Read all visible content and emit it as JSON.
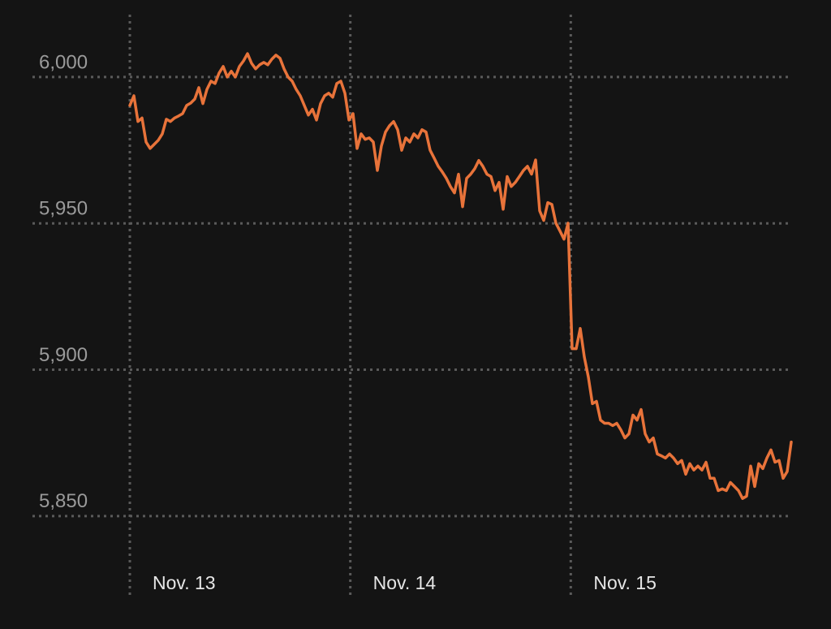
{
  "chart_data": {
    "type": "line",
    "x_labels": [
      "Nov. 13",
      "Nov. 14",
      "Nov. 15"
    ],
    "color": "#e8733a",
    "ylim": [
      5825,
      6020
    ],
    "yticks": [
      {
        "value": 5850,
        "label": "5,850"
      },
      {
        "value": 5900,
        "label": "5,900"
      },
      {
        "value": 5950,
        "label": "5,950"
      },
      {
        "value": 6000,
        "label": "6,000"
      }
    ],
    "grid": true,
    "values": [
      5990.3,
      5993.6,
      5984.8,
      5986,
      5977.8,
      5975.6,
      5977,
      5978.4,
      5980.6,
      5985.6,
      5984.8,
      5986,
      5986.7,
      5987.5,
      5990.3,
      5991.1,
      5992.5,
      5996.4,
      5990.9,
      5995.8,
      5998.6,
      5997.8,
      6001.4,
      6003.6,
      6000,
      6002,
      6000,
      6003.6,
      6005.5,
      6008,
      6004.7,
      6002.8,
      6004.2,
      6005,
      6004.2,
      6006.1,
      6007.5,
      6006.4,
      6002.8,
      6000,
      5998.6,
      5995.8,
      5993.6,
      5990.3,
      5987,
      5989,
      5985.3,
      5990.9,
      5993.6,
      5994.5,
      5993.1,
      5997.8,
      5998.6,
      5994.5,
      5985.3,
      5987.5,
      5975.6,
      5980.6,
      5978.7,
      5979.2,
      5977.8,
      5968.1,
      5976.5,
      5981.2,
      5983.4,
      5984.8,
      5982,
      5975,
      5979.2,
      5977.8,
      5980.6,
      5979.2,
      5982,
      5981.2,
      5975,
      5972.3,
      5969.5,
      5967.6,
      5965.4,
      5962.6,
      5960.4,
      5966.8,
      5955.7,
      5965.4,
      5966.8,
      5968.7,
      5971.5,
      5969.5,
      5966.8,
      5966,
      5961.2,
      5964,
      5954.8,
      5966,
      5962.6,
      5964,
      5966,
      5968.1,
      5969.5,
      5966.8,
      5971.7,
      5954.3,
      5951,
      5957.1,
      5956.5,
      5950.1,
      5947.4,
      5944.6,
      5950.1,
      5907.2,
      5907.2,
      5914.1,
      5904.4,
      5897.5,
      5888.4,
      5889.2,
      5882.8,
      5881.7,
      5881.7,
      5880.9,
      5881.7,
      5879.5,
      5876.7,
      5878.1,
      5884.5,
      5882.8,
      5886.4,
      5878.1,
      5875.3,
      5876.7,
      5871.2,
      5870.6,
      5869.8,
      5871.2,
      5869.8,
      5867.9,
      5869,
      5864.3,
      5867.9,
      5865.7,
      5867.1,
      5865.7,
      5868.4,
      5862.9,
      5862.9,
      5858.7,
      5859.3,
      5858.7,
      5861.5,
      5860.1,
      5858.7,
      5856,
      5856.8,
      5867.1,
      5860.1,
      5867.9,
      5866.2,
      5869.8,
      5872.6,
      5868.4,
      5869,
      5862.9,
      5865.2,
      5875.3
    ]
  }
}
